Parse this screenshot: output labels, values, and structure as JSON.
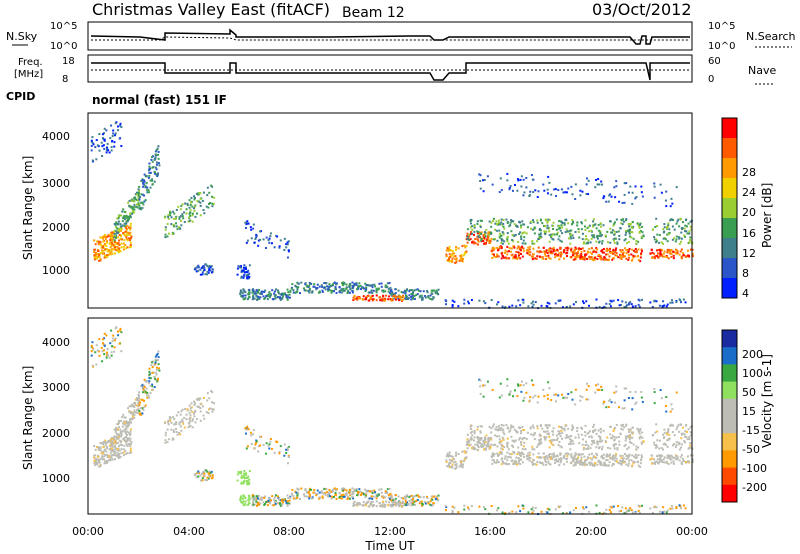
{
  "header": {
    "title": "Christmas Valley East (fitACF)",
    "beam": "Beam 12",
    "date": "03/Oct/2012"
  },
  "panels": {
    "nsky": {
      "label": "N.Sky",
      "ticks": [
        "10^5",
        "10^0"
      ]
    },
    "nsearch": {
      "label": "N.Search",
      "ticks": [
        "10^5",
        "10^0"
      ]
    },
    "freq": {
      "label_line1": "Freq.",
      "label_line2": "[MHz]",
      "ticks": [
        "18",
        "8"
      ]
    },
    "nave": {
      "label": "Nave",
      "ticks": [
        "60",
        "0"
      ]
    },
    "cpid": {
      "label": "CPID",
      "value": "normal (fast) 151 IF"
    }
  },
  "colors": {
    "power": [
      "#0020ff",
      "#2a56c9",
      "#3f7f8c",
      "#3a9e52",
      "#9acd32",
      "#f0d000",
      "#ff9a00",
      "#ff5a00",
      "#ff0000"
    ],
    "velocity": [
      "#ff0000",
      "#ff4a00",
      "#ff9a00",
      "#f7c04a",
      "#bdbdb5",
      "#bdbdb5",
      "#90e060",
      "#3aa840",
      "#1a6ec9",
      "#1a2aa0"
    ]
  },
  "chart_data": [
    {
      "type": "heatmap",
      "title": "",
      "ylabel": "Slant Range [km]",
      "xlabel": "",
      "x_ticks": [
        "00:00",
        "04:00",
        "08:00",
        "12:00",
        "16:00",
        "20:00",
        "00:00"
      ],
      "y_ticks": [
        1000,
        2000,
        3000,
        4000
      ],
      "xlim_hours": [
        0,
        24
      ],
      "ylim_km": [
        180,
        4500
      ],
      "colorbar": {
        "label": "Power [dB]",
        "ticks": [
          4,
          8,
          12,
          16,
          20,
          24,
          28
        ],
        "range": [
          0,
          30
        ]
      }
    },
    {
      "type": "heatmap",
      "title": "",
      "ylabel": "Slant Range [km]",
      "xlabel": "Time UT",
      "x_ticks": [
        "00:00",
        "04:00",
        "08:00",
        "12:00",
        "16:00",
        "20:00",
        "00:00"
      ],
      "y_ticks": [
        1000,
        2000,
        3000,
        4000
      ],
      "xlim_hours": [
        0,
        24
      ],
      "ylim_km": [
        180,
        4500
      ],
      "colorbar": {
        "label": "Velocity [m s-1]",
        "ticks": [
          200,
          100,
          50,
          15,
          -15,
          -50,
          -100,
          -200
        ]
      }
    }
  ]
}
